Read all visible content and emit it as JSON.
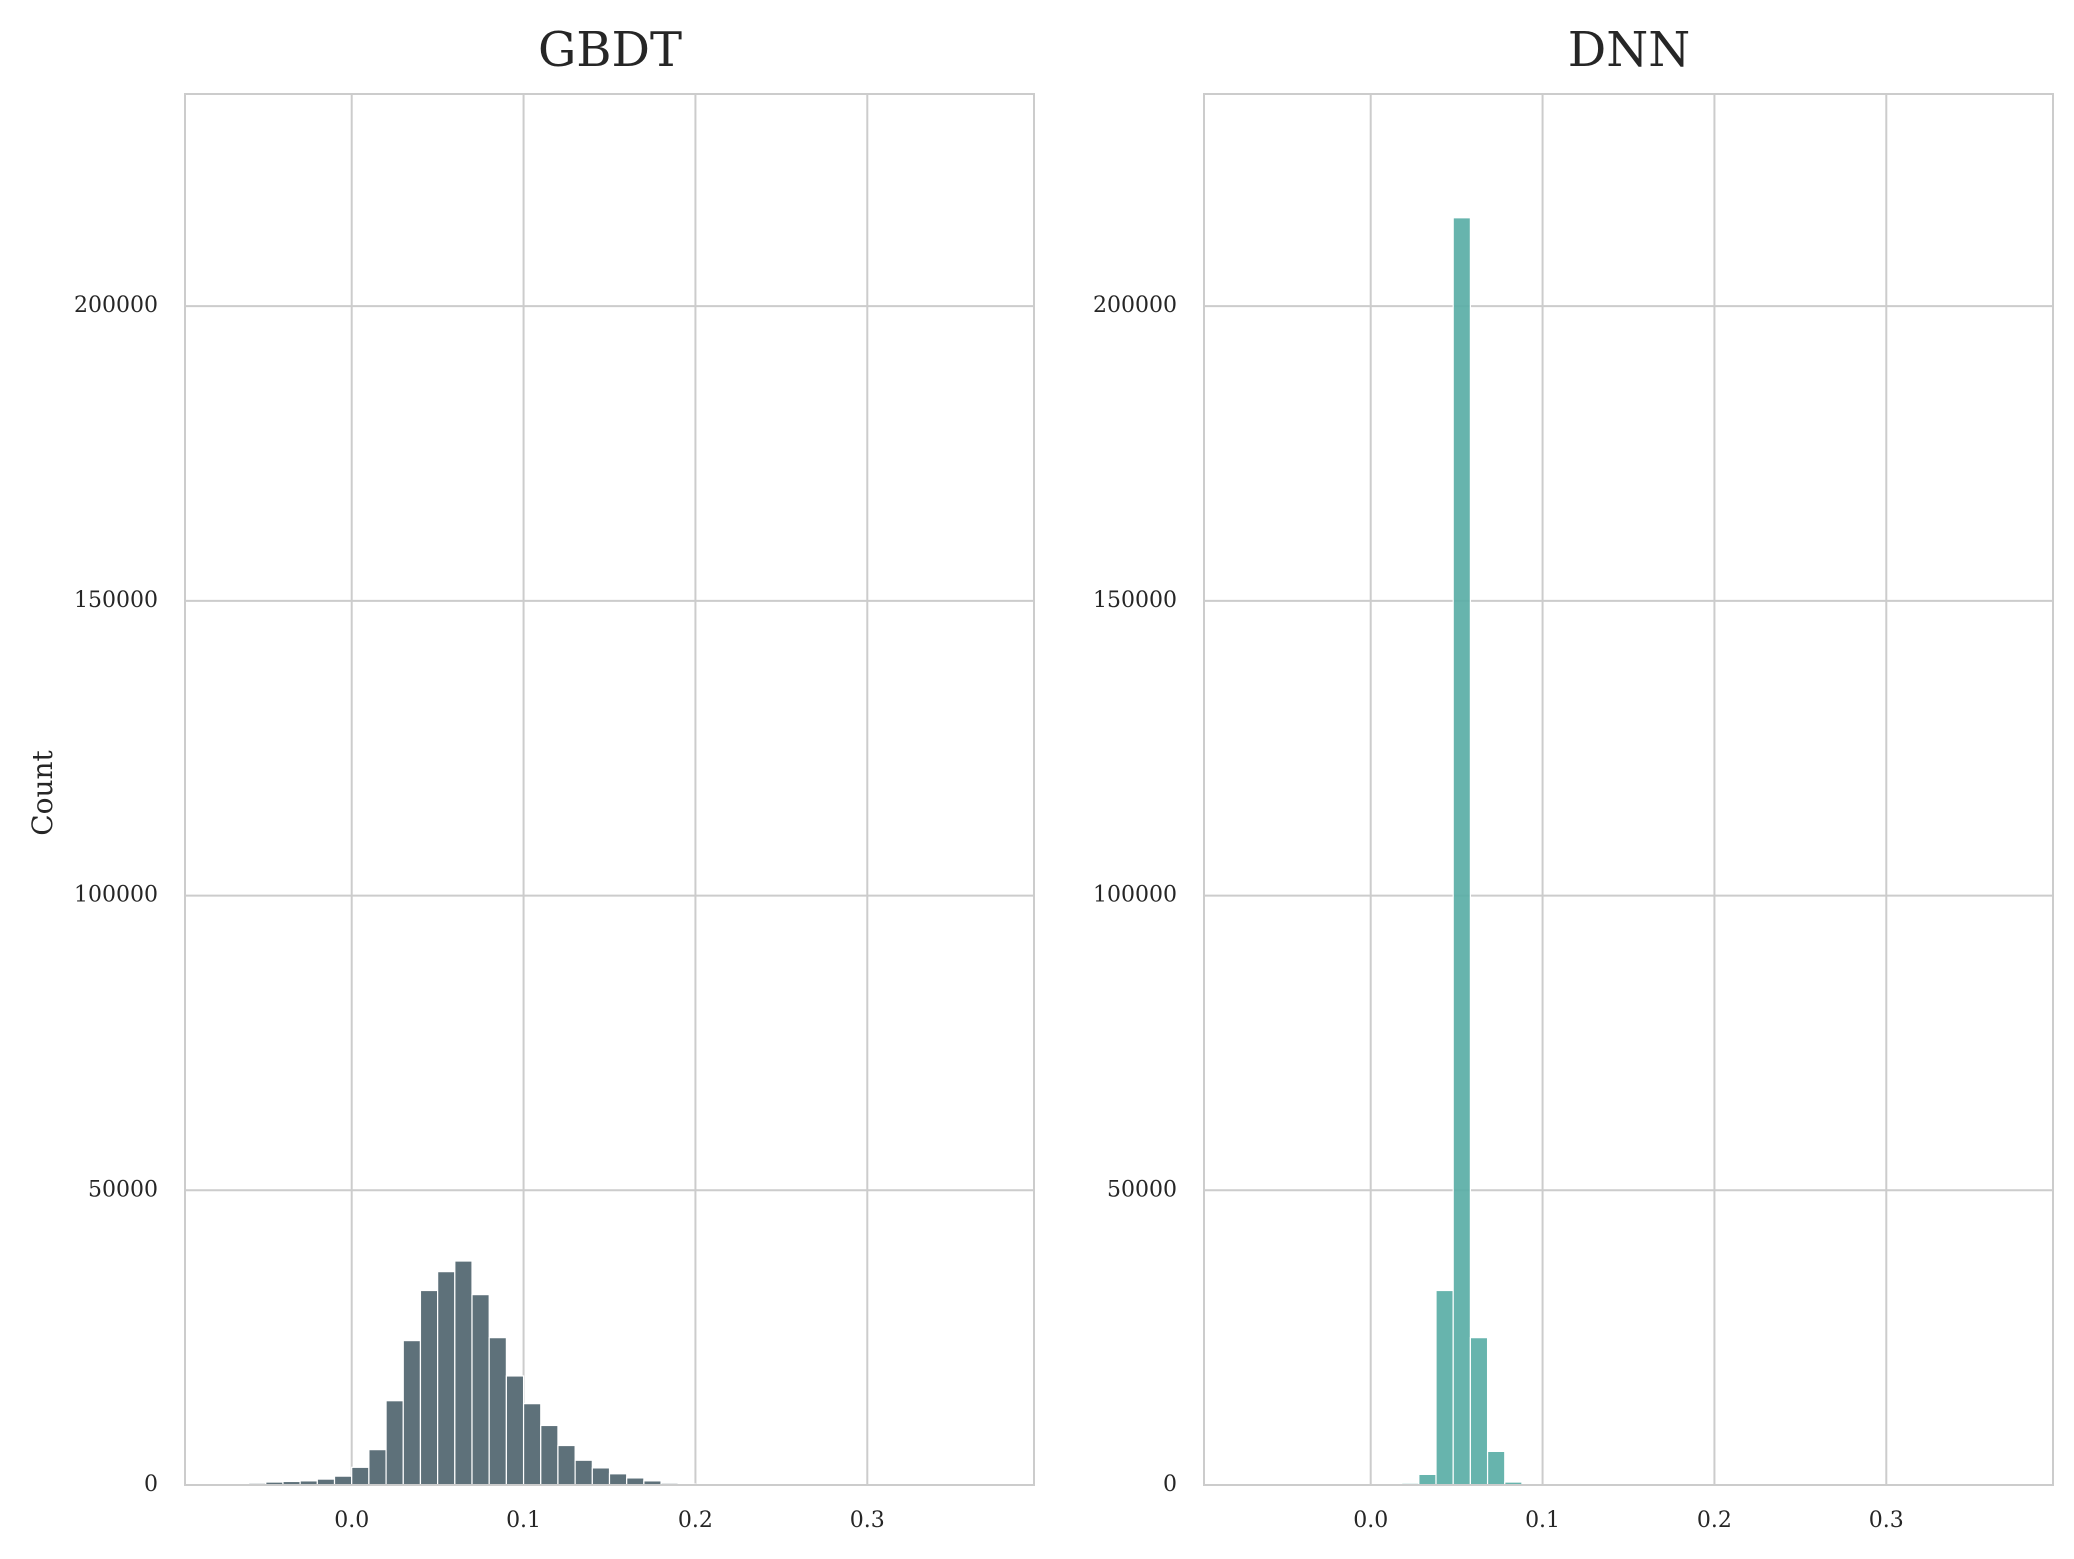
{
  "chart_data": [
    {
      "type": "bar",
      "subtype": "histogram",
      "title": "GBDT",
      "xlabel": "",
      "ylabel": "Count",
      "xlim": [
        -0.097,
        0.397
      ],
      "ylim": [
        0,
        236000
      ],
      "xticks": [
        0.0,
        0.1,
        0.2,
        0.3
      ],
      "xtick_labels": [
        "0.0",
        "0.1",
        "0.2",
        "0.3"
      ],
      "yticks": [
        0,
        50000,
        100000,
        150000,
        200000
      ],
      "ytick_labels": [
        "0",
        "50000",
        "100000",
        "150000",
        "200000"
      ],
      "grid": true,
      "color": "#50656f",
      "bin_width": 0.01,
      "bins": [
        {
          "x": -0.06,
          "count": 300
        },
        {
          "x": -0.05,
          "count": 500
        },
        {
          "x": -0.04,
          "count": 600
        },
        {
          "x": -0.03,
          "count": 700
        },
        {
          "x": -0.02,
          "count": 1000
        },
        {
          "x": -0.01,
          "count": 1500
        },
        {
          "x": 0.0,
          "count": 3000
        },
        {
          "x": 0.01,
          "count": 6000
        },
        {
          "x": 0.02,
          "count": 14300
        },
        {
          "x": 0.03,
          "count": 24500
        },
        {
          "x": 0.04,
          "count": 33000
        },
        {
          "x": 0.05,
          "count": 36200
        },
        {
          "x": 0.06,
          "count": 38000
        },
        {
          "x": 0.07,
          "count": 32300
        },
        {
          "x": 0.08,
          "count": 25000
        },
        {
          "x": 0.09,
          "count": 18500
        },
        {
          "x": 0.1,
          "count": 13800
        },
        {
          "x": 0.11,
          "count": 10100
        },
        {
          "x": 0.12,
          "count": 6700
        },
        {
          "x": 0.13,
          "count": 4200
        },
        {
          "x": 0.14,
          "count": 2900
        },
        {
          "x": 0.15,
          "count": 1900
        },
        {
          "x": 0.16,
          "count": 1200
        },
        {
          "x": 0.17,
          "count": 700
        },
        {
          "x": 0.18,
          "count": 300
        },
        {
          "x": 0.19,
          "count": 150
        },
        {
          "x": 0.2,
          "count": 80
        },
        {
          "x": 0.21,
          "count": 40
        },
        {
          "x": 0.22,
          "count": 20
        }
      ]
    },
    {
      "type": "bar",
      "subtype": "histogram",
      "title": "DNN",
      "xlabel": "",
      "ylabel": "",
      "xlim": [
        -0.097,
        0.397
      ],
      "ylim": [
        0,
        236000
      ],
      "xticks": [
        0.0,
        0.1,
        0.2,
        0.3
      ],
      "xtick_labels": [
        "0.0",
        "0.1",
        "0.2",
        "0.3"
      ],
      "yticks": [
        0,
        50000,
        100000,
        150000,
        200000
      ],
      "ytick_labels": [
        "0",
        "50000",
        "100000",
        "150000",
        "200000"
      ],
      "grid": true,
      "color": "#5aaea6",
      "bin_width": 0.01,
      "bins": [
        {
          "x": 0.018,
          "count": 300
        },
        {
          "x": 0.028,
          "count": 1800
        },
        {
          "x": 0.038,
          "count": 33000
        },
        {
          "x": 0.048,
          "count": 215000
        },
        {
          "x": 0.058,
          "count": 25000
        },
        {
          "x": 0.068,
          "count": 5700
        },
        {
          "x": 0.078,
          "count": 500
        },
        {
          "x": 0.088,
          "count": 100
        }
      ]
    }
  ]
}
